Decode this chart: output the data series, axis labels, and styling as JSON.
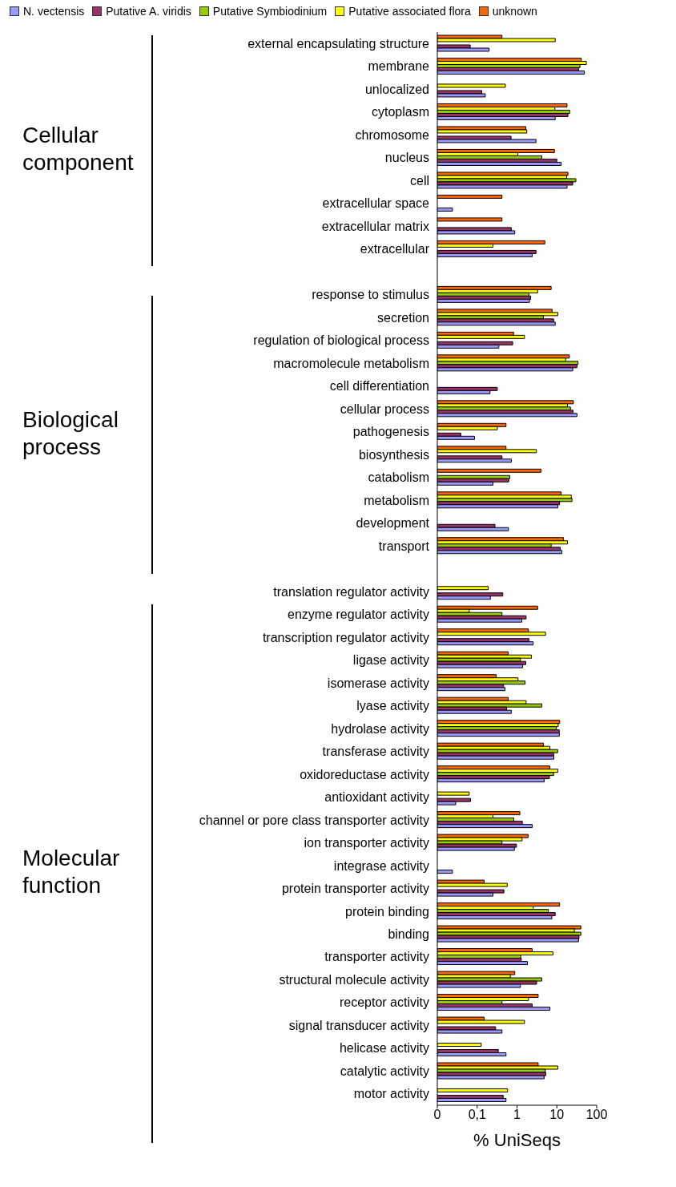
{
  "chart_data": {
    "type": "bar",
    "orientation": "horizontal",
    "log": "x",
    "legend": "top",
    "xlabel": "% UniSeqs",
    "xlim": [
      0.01,
      100
    ],
    "xticks": [
      {
        "value": 0.01,
        "label": "0"
      },
      {
        "value": 0.1,
        "label": "0,1"
      },
      1,
      10,
      100
    ],
    "annotations": [
      "Cellular component",
      "Biological process",
      "Molecular function"
    ],
    "categories": [
      "external encapsulating structure",
      "membrane",
      "unlocalized",
      "cytoplasm",
      "chromosome",
      "nucleus",
      "cell",
      "extracellular space",
      "extracellular matrix",
      "extracellular",
      null,
      "response to stimulus",
      "secretion",
      "regulation of biological process",
      "macromolecule metabolism",
      "cell differentiation",
      "cellular process",
      "pathogenesis",
      "biosynthesis",
      "catabolism",
      "metabolism",
      "development",
      "transport",
      null,
      "translation regulator activity",
      "enzyme regulator activity",
      "transcription regulator activity",
      "ligase activity",
      "isomerase activity",
      "lyase activity",
      "hydrolase activity",
      "transferase activity",
      "oxidoreductase activity",
      "antioxidant activity",
      "channel or pore class transporter activity",
      "ion transporter activity",
      "integrase activity",
      "protein transporter activity",
      "protein binding",
      "binding",
      "transporter activity",
      "structural molecule activity",
      "receptor activity",
      "signal transducer activity",
      "helicase activity",
      "catalytic activity",
      "motor activity"
    ],
    "series": [
      {
        "name": "N. vectensis",
        "color": "#9999ff",
        "values": [
          0.2,
          49,
          0.16,
          9.1,
          3.0,
          12.8,
          18,
          0.024,
          0.88,
          2.4,
          null,
          2.06,
          9.1,
          0.35,
          25,
          0.21,
          32,
          0.086,
          0.72,
          0.25,
          10.6,
          0.61,
          13.4,
          null,
          0.215,
          1.32,
          2.55,
          1.38,
          0.5,
          0.72,
          11.5,
          8.4,
          4.8,
          0.029,
          2.4,
          0.86,
          0.024,
          0.25,
          7.5,
          35,
          1.82,
          1.22,
          6.7,
          0.42,
          0.53,
          4.8,
          0.53
        ]
      },
      {
        "name": "Putative A. viridis",
        "color": "#993366",
        "values": [
          0.067,
          35,
          0.13,
          19,
          0.71,
          10,
          25,
          null,
          0.72,
          3.0,
          null,
          2.2,
          8.3,
          0.78,
          32,
          0.32,
          25.5,
          0.039,
          0.42,
          0.62,
          11.7,
          0.28,
          12.2,
          null,
          0.44,
          1.69,
          2.0,
          1.66,
          0.46,
          0.55,
          11.5,
          8.3,
          6.5,
          0.068,
          1.36,
          0.97,
          null,
          0.47,
          9.1,
          36,
          1.28,
          3.1,
          2.4,
          0.29,
          0.34,
          5.3,
          0.45
        ]
      },
      {
        "name": "Putative Symbiodinium",
        "color": "#99cc00",
        "values": [
          null,
          38,
          null,
          21,
          null,
          4.2,
          30,
          null,
          null,
          null,
          null,
          2.0,
          4.6,
          null,
          34,
          null,
          22,
          null,
          null,
          0.66,
          24,
          null,
          7.2,
          null,
          null,
          0.42,
          null,
          1.22,
          1.6,
          4.2,
          9.7,
          10.5,
          8.3,
          null,
          0.83,
          0.42,
          null,
          null,
          6.1,
          40,
          1.24,
          4.2,
          0.42,
          null,
          null,
          5.1,
          null
        ]
      },
      {
        "name": "Putative associated flora",
        "color": "#ffff00",
        "values": [
          9.1,
          55,
          0.51,
          8.9,
          1.76,
          1.05,
          17.6,
          null,
          null,
          0.25,
          null,
          3.3,
          10.6,
          1.54,
          16.6,
          null,
          18.5,
          0.32,
          3.07,
          null,
          23,
          null,
          18.5,
          null,
          0.19,
          0.063,
          5.2,
          2.3,
          1.06,
          1.69,
          10.8,
          6.7,
          10.6,
          0.063,
          0.25,
          1.34,
          null,
          0.57,
          2.55,
          27.5,
          8.0,
          0.68,
          1.94,
          1.54,
          0.126,
          10.6,
          0.58
        ]
      },
      {
        "name": "unknown",
        "color": "#ff6600",
        "values": [
          0.42,
          41,
          null,
          18,
          1.66,
          8.7,
          19,
          0.42,
          0.42,
          5.0,
          null,
          7.2,
          7.6,
          0.82,
          20.6,
          null,
          26,
          0.53,
          0.53,
          4.0,
          12.8,
          null,
          14.7,
          null,
          null,
          3.3,
          1.94,
          0.6,
          0.3,
          0.6,
          11.8,
          4.6,
          6.6,
          null,
          1.18,
          1.9,
          null,
          0.15,
          11.7,
          40,
          2.4,
          0.88,
          3.4,
          0.15,
          null,
          3.4,
          null
        ]
      }
    ]
  }
}
